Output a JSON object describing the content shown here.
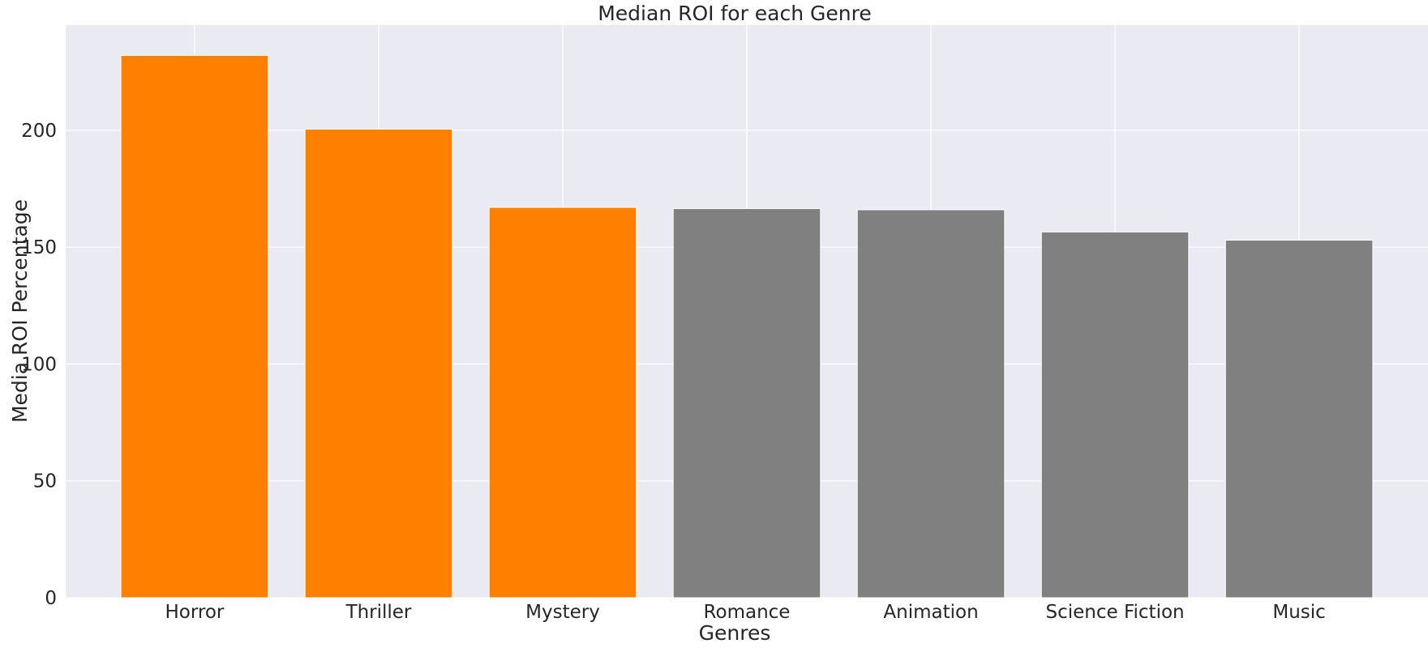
{
  "chart_data": {
    "type": "bar",
    "title": "Median ROI for each Genre",
    "xlabel": "Genres",
    "ylabel": "Media ROI Percentage",
    "categories": [
      "Horror",
      "Thriller",
      "Mystery",
      "Romance",
      "Animation",
      "Science Fiction",
      "Music"
    ],
    "values": [
      232,
      200.5,
      167,
      166.5,
      166,
      156.5,
      153
    ],
    "bar_colors": [
      "#ff7f00",
      "#ff7f00",
      "#ff7f00",
      "#808080",
      "#808080",
      "#808080",
      "#808080"
    ],
    "ylim": [
      0,
      245
    ],
    "yticks": [
      0,
      50,
      100,
      150,
      200
    ],
    "grid": true,
    "legend": "none"
  },
  "colors": {
    "plot_background": "#eaeaf2",
    "grid": "#ffffff",
    "highlight": "#ff7f00",
    "neutral": "#808080"
  }
}
